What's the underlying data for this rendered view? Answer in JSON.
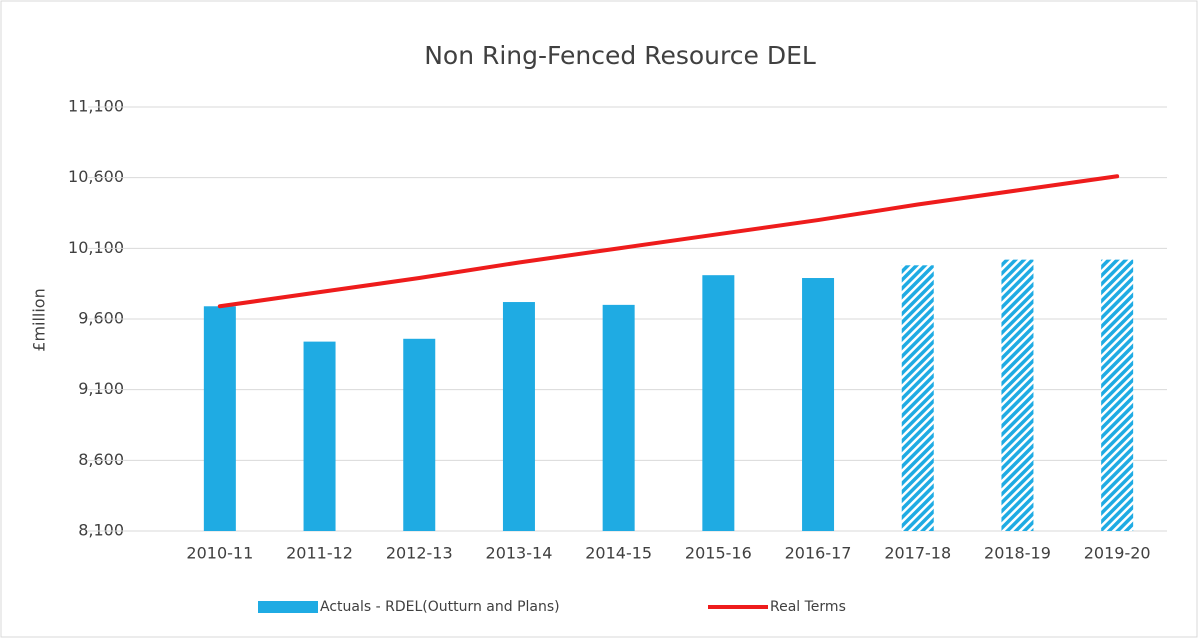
{
  "chart_data": {
    "type": "bar-line",
    "title": "Non Ring-Fenced Resource DEL",
    "y_label": "£million",
    "categories": [
      "2010-11",
      "2011-12",
      "2012-13",
      "2013-14",
      "2014-15",
      "2015-16",
      "2016-17",
      "2017-18",
      "2018-19",
      "2019-20"
    ],
    "series": [
      {
        "name": "Actuals - RDEL(Outturn and Plans)",
        "type": "bar",
        "color": "#1fabe3",
        "hatched": [
          false,
          false,
          false,
          false,
          false,
          false,
          false,
          true,
          true,
          true
        ],
        "values": [
          9690,
          9440,
          9460,
          9720,
          9700,
          9910,
          9890,
          9980,
          10020,
          10020
        ]
      },
      {
        "name": "Real Terms",
        "type": "line",
        "color": "#ee1c1c",
        "values": [
          9690,
          9790,
          9890,
          10000,
          10100,
          10200,
          10300,
          10410,
          10510,
          10610
        ]
      }
    ],
    "ylim": [
      8100,
      11100
    ],
    "yticks": [
      {
        "value": 8100,
        "label": "8,100"
      },
      {
        "value": 8600,
        "label": "8,600"
      },
      {
        "value": 9100,
        "label": "9,100"
      },
      {
        "value": 9600,
        "label": "9,600"
      },
      {
        "value": 10100,
        "label": "10,100"
      },
      {
        "value": 10600,
        "label": "10,600"
      },
      {
        "value": 11100,
        "label": "11,100"
      }
    ],
    "grid": true,
    "legend": "bottom"
  }
}
